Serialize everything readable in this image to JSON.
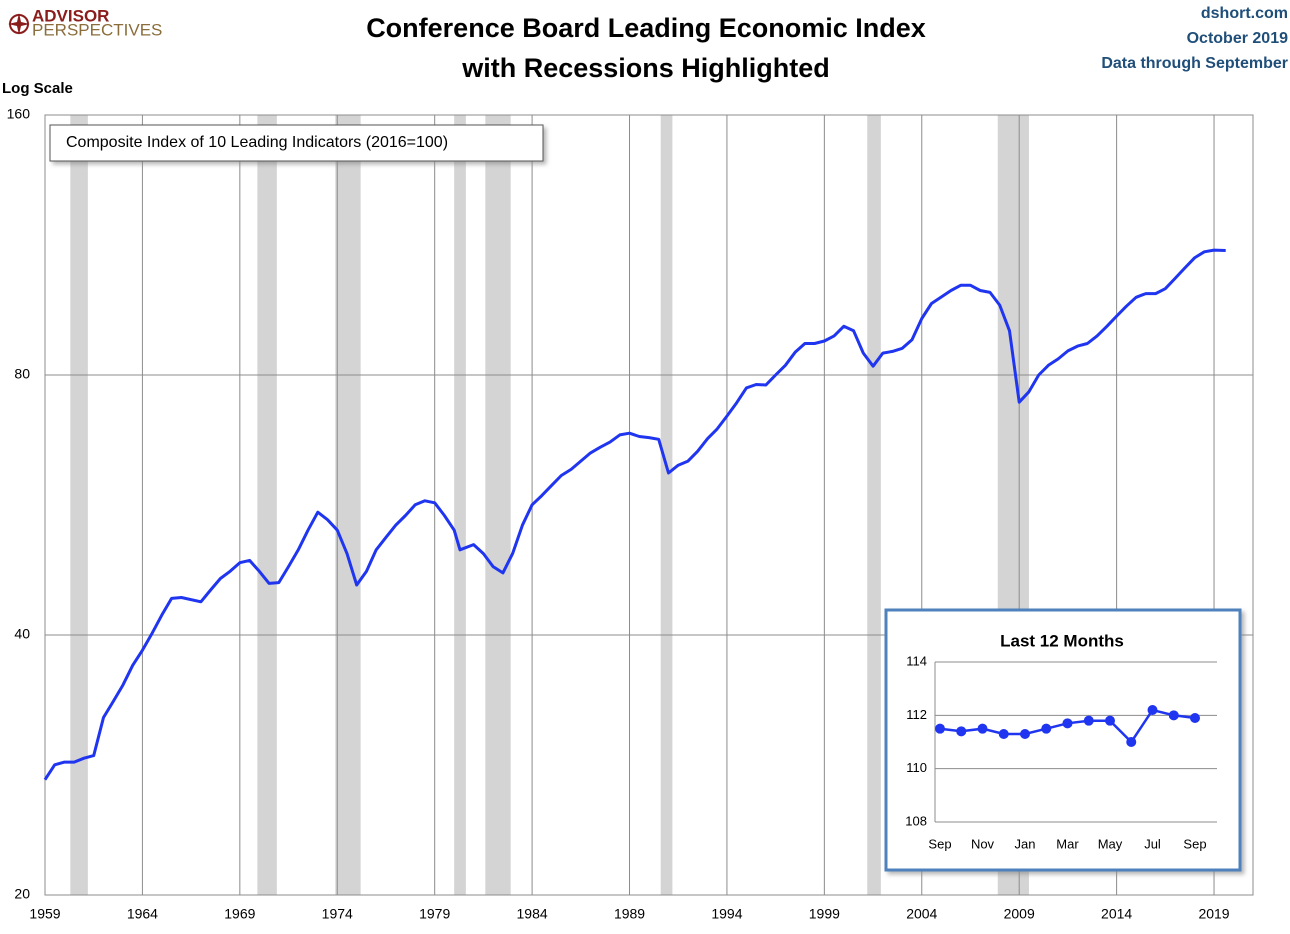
{
  "header": {
    "brand_top": "ADVISOR",
    "brand_bottom": "PERSPECTIVES",
    "source": "dshort.com",
    "date": "October 2019",
    "note": "Data through September"
  },
  "chart_data": [
    {
      "type": "line",
      "title": [
        "Conference Board Leading Economic Index",
        "with Recessions Highlighted"
      ],
      "y_label": "Log Scale",
      "annotation": "Composite Index of 10 Leading Indicators (2016=100)",
      "log_scale": true,
      "grid": true,
      "color": "#1f35f0",
      "recession_color": "#d4d4d4",
      "xlim": [
        1959,
        2021
      ],
      "xticks": [
        1959,
        1964,
        1969,
        1974,
        1979,
        1984,
        1989,
        1994,
        1999,
        2004,
        2009,
        2014,
        2019
      ],
      "ylim": [
        20,
        160
      ],
      "yticks": [
        20,
        40,
        80,
        160
      ],
      "recessions": [
        [
          1960.3,
          1961.2
        ],
        [
          1969.9,
          1970.9
        ],
        [
          1973.9,
          1975.2
        ],
        [
          1980.0,
          1980.6
        ],
        [
          1981.6,
          1982.9
        ],
        [
          1990.6,
          1991.2
        ],
        [
          2001.2,
          2001.9
        ],
        [
          2007.9,
          2009.5
        ]
      ],
      "x": [
        1959,
        1959.5,
        1960,
        1960.5,
        1961,
        1961.5,
        1962,
        1962.5,
        1963,
        1963.5,
        1964,
        1964.5,
        1965,
        1965.5,
        1966,
        1967,
        1967.5,
        1968,
        1968.5,
        1969,
        1969.5,
        1970,
        1970.5,
        1971,
        1971.5,
        1972,
        1972.5,
        1973,
        1973.5,
        1974,
        1974.5,
        1975,
        1975.5,
        1976,
        1976.5,
        1977,
        1977.5,
        1978,
        1978.5,
        1979,
        1979.5,
        1980,
        1980.3,
        1981,
        1981.5,
        1982,
        1982.5,
        1983,
        1983.5,
        1984,
        1984.5,
        1985,
        1985.5,
        1986,
        1986.5,
        1987,
        1987.5,
        1988,
        1988.5,
        1989,
        1989.5,
        1990,
        1990.5,
        1991,
        1991.5,
        1992,
        1992.5,
        1993,
        1993.5,
        1994,
        1994.5,
        1995,
        1995.5,
        1996,
        1996.5,
        1997,
        1997.5,
        1998,
        1998.5,
        1999,
        1999.5,
        2000,
        2000.5,
        2001,
        2001.5,
        2002,
        2002.5,
        2003,
        2003.5,
        2004,
        2004.5,
        2005,
        2005.5,
        2006,
        2006.5,
        2007,
        2007.5,
        2008,
        2008.5,
        2009,
        2009.5,
        2010,
        2010.5,
        2011,
        2011.5,
        2012,
        2012.5,
        2013,
        2013.5,
        2014,
        2014.5,
        2015,
        2015.5,
        2016,
        2016.5,
        2017,
        2017.5,
        2018,
        2018.5,
        2019,
        2019.6
      ],
      "values": [
        27.2,
        28.3,
        28.5,
        28.5,
        28.8,
        29.0,
        32.1,
        33.5,
        35.0,
        36.9,
        38.4,
        40.2,
        42.2,
        44.1,
        44.2,
        43.7,
        45.1,
        46.5,
        47.4,
        48.5,
        48.8,
        47.4,
        45.9,
        46.0,
        48.0,
        50.2,
        52.9,
        55.5,
        54.4,
        52.9,
        49.7,
        45.7,
        47.4,
        50.2,
        51.9,
        53.6,
        55.0,
        56.6,
        57.2,
        56.9,
        55.0,
        52.9,
        50.2,
        50.9,
        49.7,
        48.0,
        47.2,
        49.7,
        53.6,
        56.6,
        58.0,
        59.6,
        61.2,
        62.2,
        63.6,
        65.0,
        66.0,
        66.9,
        68.2,
        68.5,
        67.9,
        67.7,
        67.4,
        61.6,
        62.9,
        63.6,
        65.3,
        67.5,
        69.3,
        71.7,
        74.3,
        77.3,
        78.0,
        77.9,
        80.0,
        82.1,
        85.0,
        87.0,
        87.0,
        87.6,
        88.8,
        91.1,
        90.0,
        84.8,
        81.9,
        84.8,
        85.2,
        85.9,
        87.9,
        93.0,
        96.8,
        98.5,
        100.2,
        101.6,
        101.6,
        100.2,
        99.7,
        96.4,
        90.0,
        74.4,
        76.5,
        80.0,
        82.1,
        83.5,
        85.3,
        86.4,
        87.0,
        88.8,
        91.1,
        93.6,
        96.1,
        98.4,
        99.4,
        99.4,
        100.7,
        103.5,
        106.4,
        109.3,
        111.1,
        111.6,
        111.5
      ]
    },
    {
      "type": "line",
      "title": "Last 12 Months",
      "color": "#1f35f0",
      "grid": true,
      "categories": [
        "Sep",
        null,
        "Nov",
        null,
        "Jan",
        null,
        "Mar",
        null,
        "May",
        null,
        "Jul",
        null,
        "Sep"
      ],
      "values": [
        111.5,
        111.4,
        111.5,
        111.3,
        111.3,
        111.5,
        111.7,
        111.8,
        111.8,
        111.0,
        112.2,
        112.0,
        111.9
      ],
      "ylim": [
        108,
        114
      ],
      "yticks": [
        108,
        110,
        112,
        114
      ]
    }
  ]
}
